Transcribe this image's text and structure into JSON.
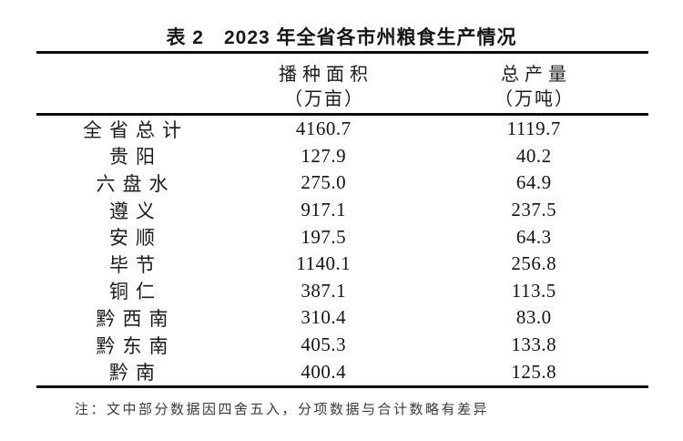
{
  "caption": "表 2　2023 年全省各市州粮食生产情况",
  "columns": [
    {
      "title": "播种面积",
      "unit": "（万亩）"
    },
    {
      "title": "总产量",
      "unit": "（万吨）"
    }
  ],
  "rows": [
    {
      "region": "全省总计",
      "area": "4160.7",
      "output": "1119.7"
    },
    {
      "region": "贵阳",
      "area": "127.9",
      "output": "40.2"
    },
    {
      "region": "六盘水",
      "area": "275.0",
      "output": "64.9"
    },
    {
      "region": "遵义",
      "area": "917.1",
      "output": "237.5"
    },
    {
      "region": "安顺",
      "area": "197.5",
      "output": "64.3"
    },
    {
      "region": "毕节",
      "area": "1140.1",
      "output": "256.8"
    },
    {
      "region": "铜仁",
      "area": "387.1",
      "output": "113.5"
    },
    {
      "region": "黔西南",
      "area": "310.4",
      "output": "83.0"
    },
    {
      "region": "黔东南",
      "area": "405.3",
      "output": "133.8"
    },
    {
      "region": "黔南",
      "area": "400.4",
      "output": "125.8"
    }
  ],
  "note": "注：文中部分数据因四舍五入，分项数据与合计数略有差异",
  "colors": {
    "background": "#ffffff",
    "text": "#1c1c1c",
    "rule": "#0c0c0c"
  }
}
